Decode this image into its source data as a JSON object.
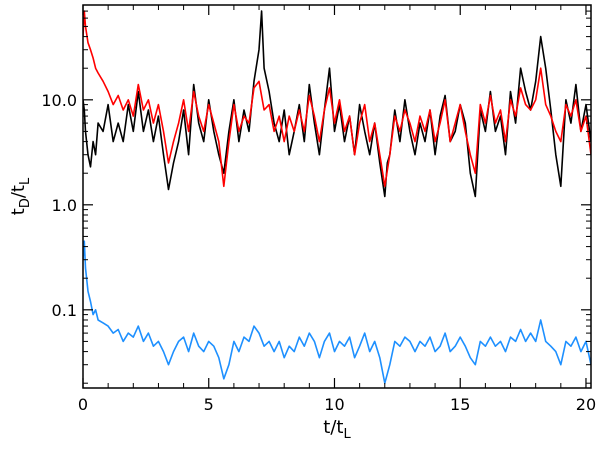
{
  "chart_data": {
    "type": "line",
    "title": "",
    "xlabel": {
      "main": "t/t",
      "sub": "L"
    },
    "ylabel": {
      "parts": [
        {
          "t": "t",
          "sub": false
        },
        {
          "t": "D",
          "sub": true
        },
        {
          "t": "/t",
          "sub": false
        },
        {
          "t": "L",
          "sub": true
        }
      ]
    },
    "x_scale": "linear",
    "y_scale": "log",
    "xlim": [
      0,
      20.2
    ],
    "ylim": [
      0.018,
      80
    ],
    "x_ticks": [
      {
        "value": 0,
        "label": "0"
      },
      {
        "value": 5,
        "label": "5"
      },
      {
        "value": 10,
        "label": "10"
      },
      {
        "value": 15,
        "label": "15"
      },
      {
        "value": 20,
        "label": "20"
      }
    ],
    "y_ticks": [
      {
        "value": 0.1,
        "label": "0.1"
      },
      {
        "value": 1,
        "label": "1.0"
      },
      {
        "value": 10,
        "label": "10.0"
      }
    ],
    "grid": false,
    "legend": "none",
    "series": [
      {
        "color": "#000000",
        "x": [
          0.0,
          0.05,
          0.1,
          0.2,
          0.3,
          0.4,
          0.5,
          0.6,
          0.8,
          1.0,
          1.2,
          1.4,
          1.6,
          1.8,
          2.0,
          2.2,
          2.4,
          2.6,
          2.8,
          3.0,
          3.2,
          3.4,
          3.6,
          3.8,
          4.0,
          4.2,
          4.4,
          4.6,
          4.8,
          5.0,
          5.2,
          5.4,
          5.6,
          5.8,
          6.0,
          6.2,
          6.4,
          6.6,
          6.8,
          7.0,
          7.1,
          7.2,
          7.4,
          7.6,
          7.8,
          8.0,
          8.2,
          8.4,
          8.6,
          8.8,
          9.0,
          9.2,
          9.4,
          9.6,
          9.8,
          10.0,
          10.2,
          10.4,
          10.6,
          10.8,
          11.0,
          11.2,
          11.4,
          11.6,
          11.8,
          12.0,
          12.1,
          12.2,
          12.4,
          12.6,
          12.8,
          13.0,
          13.2,
          13.4,
          13.6,
          13.8,
          14.0,
          14.2,
          14.4,
          14.6,
          14.8,
          15.0,
          15.2,
          15.4,
          15.6,
          15.8,
          16.0,
          16.2,
          16.4,
          16.6,
          16.8,
          17.0,
          17.2,
          17.4,
          17.6,
          17.8,
          18.0,
          18.2,
          18.4,
          18.6,
          18.8,
          19.0,
          19.2,
          19.4,
          19.6,
          19.8,
          20.0,
          20.2
        ],
        "y": [
          10,
          8,
          5,
          3,
          2.3,
          4,
          3,
          6,
          5,
          9,
          4,
          6,
          4,
          9,
          5,
          12,
          5,
          8,
          4,
          7,
          3,
          1.4,
          2.5,
          4,
          8,
          3,
          14,
          6,
          4,
          10,
          5,
          3,
          2,
          5,
          10,
          4,
          8,
          5,
          15,
          30,
          70,
          20,
          12,
          6,
          4,
          8,
          3,
          5,
          9,
          4,
          14,
          6,
          3,
          8,
          20,
          5,
          9,
          4,
          7,
          3,
          9,
          5,
          3,
          6,
          2.5,
          1.2,
          2.5,
          3,
          8,
          4,
          10,
          5,
          3,
          6,
          4,
          8,
          3,
          7,
          11,
          4,
          5,
          9,
          6,
          2,
          1.2,
          8,
          5,
          12,
          5,
          7,
          3,
          12,
          6,
          20,
          12,
          8,
          15,
          40,
          20,
          8,
          3,
          1.5,
          10,
          6,
          14,
          5,
          9,
          4
        ]
      },
      {
        "color": "#ff0000",
        "x": [
          0.0,
          0.05,
          0.1,
          0.2,
          0.3,
          0.4,
          0.5,
          0.6,
          0.8,
          1.0,
          1.2,
          1.4,
          1.6,
          1.8,
          2.0,
          2.2,
          2.4,
          2.6,
          2.8,
          3.0,
          3.2,
          3.4,
          3.6,
          3.8,
          4.0,
          4.2,
          4.4,
          4.6,
          4.8,
          5.0,
          5.2,
          5.4,
          5.6,
          5.8,
          6.0,
          6.2,
          6.4,
          6.6,
          6.8,
          7.0,
          7.2,
          7.4,
          7.6,
          7.8,
          8.0,
          8.2,
          8.4,
          8.6,
          8.8,
          9.0,
          9.2,
          9.4,
          9.6,
          9.8,
          10.0,
          10.2,
          10.4,
          10.6,
          10.8,
          11.0,
          11.2,
          11.4,
          11.6,
          11.8,
          12.0,
          12.2,
          12.4,
          12.6,
          12.8,
          13.0,
          13.2,
          13.4,
          13.6,
          13.8,
          14.0,
          14.2,
          14.4,
          14.6,
          14.8,
          15.0,
          15.2,
          15.4,
          15.6,
          15.8,
          16.0,
          16.2,
          16.4,
          16.6,
          16.8,
          17.0,
          17.2,
          17.4,
          17.6,
          17.8,
          18.0,
          18.2,
          18.4,
          18.6,
          18.8,
          19.0,
          19.2,
          19.4,
          19.6,
          19.8,
          20.0,
          20.2
        ],
        "y": [
          40,
          70,
          50,
          35,
          30,
          25,
          20,
          18,
          15,
          12,
          9,
          11,
          8,
          10,
          7,
          14,
          8,
          10,
          6,
          9,
          5,
          2.5,
          4,
          6,
          10,
          5,
          12,
          7,
          5,
          9,
          6,
          4,
          1.5,
          4,
          9,
          5,
          7,
          6,
          13,
          15,
          8,
          9,
          5,
          7,
          4,
          7,
          5,
          8,
          5,
          11,
          7,
          4,
          8,
          13,
          6,
          10,
          5,
          7,
          3,
          6,
          9,
          4,
          6,
          3,
          1.5,
          3,
          7,
          5,
          8,
          6,
          4,
          7,
          5,
          8,
          4,
          6,
          10,
          4,
          6,
          9,
          5,
          3,
          2,
          9,
          6,
          11,
          6,
          8,
          4,
          10,
          7,
          13,
          9,
          8,
          10,
          20,
          9,
          7,
          5,
          4,
          9,
          7,
          10,
          5,
          7,
          3
        ]
      },
      {
        "color": "#1e90ff",
        "x": [
          0.0,
          0.05,
          0.1,
          0.2,
          0.3,
          0.4,
          0.5,
          0.6,
          0.8,
          1.0,
          1.2,
          1.4,
          1.6,
          1.8,
          2.0,
          2.2,
          2.4,
          2.6,
          2.8,
          3.0,
          3.2,
          3.4,
          3.6,
          3.8,
          4.0,
          4.2,
          4.4,
          4.6,
          4.8,
          5.0,
          5.2,
          5.4,
          5.6,
          5.8,
          6.0,
          6.2,
          6.4,
          6.6,
          6.8,
          7.0,
          7.2,
          7.4,
          7.6,
          7.8,
          8.0,
          8.2,
          8.4,
          8.6,
          8.8,
          9.0,
          9.2,
          9.4,
          9.6,
          9.8,
          10.0,
          10.2,
          10.4,
          10.6,
          10.8,
          11.0,
          11.2,
          11.4,
          11.6,
          11.8,
          12.0,
          12.2,
          12.4,
          12.6,
          12.8,
          13.0,
          13.2,
          13.4,
          13.6,
          13.8,
          14.0,
          14.2,
          14.4,
          14.6,
          14.8,
          15.0,
          15.2,
          15.4,
          15.6,
          15.8,
          16.0,
          16.2,
          16.4,
          16.6,
          16.8,
          17.0,
          17.2,
          17.4,
          17.6,
          17.8,
          18.0,
          18.2,
          18.4,
          18.6,
          18.8,
          19.0,
          19.2,
          19.4,
          19.6,
          19.8,
          20.0,
          20.2
        ],
        "y": [
          0.3,
          0.45,
          0.25,
          0.15,
          0.12,
          0.09,
          0.1,
          0.08,
          0.075,
          0.07,
          0.06,
          0.065,
          0.05,
          0.06,
          0.055,
          0.07,
          0.05,
          0.06,
          0.045,
          0.05,
          0.04,
          0.03,
          0.04,
          0.05,
          0.055,
          0.04,
          0.06,
          0.045,
          0.04,
          0.05,
          0.045,
          0.035,
          0.022,
          0.03,
          0.05,
          0.04,
          0.055,
          0.05,
          0.07,
          0.06,
          0.045,
          0.05,
          0.04,
          0.05,
          0.035,
          0.045,
          0.04,
          0.055,
          0.045,
          0.06,
          0.05,
          0.035,
          0.05,
          0.06,
          0.04,
          0.05,
          0.045,
          0.055,
          0.035,
          0.045,
          0.06,
          0.04,
          0.05,
          0.035,
          0.02,
          0.03,
          0.05,
          0.045,
          0.055,
          0.05,
          0.04,
          0.05,
          0.045,
          0.055,
          0.04,
          0.045,
          0.06,
          0.04,
          0.045,
          0.055,
          0.045,
          0.035,
          0.03,
          0.05,
          0.045,
          0.055,
          0.045,
          0.05,
          0.04,
          0.055,
          0.05,
          0.065,
          0.05,
          0.06,
          0.05,
          0.08,
          0.05,
          0.045,
          0.04,
          0.03,
          0.05,
          0.045,
          0.055,
          0.04,
          0.05,
          0.03
        ]
      }
    ]
  }
}
